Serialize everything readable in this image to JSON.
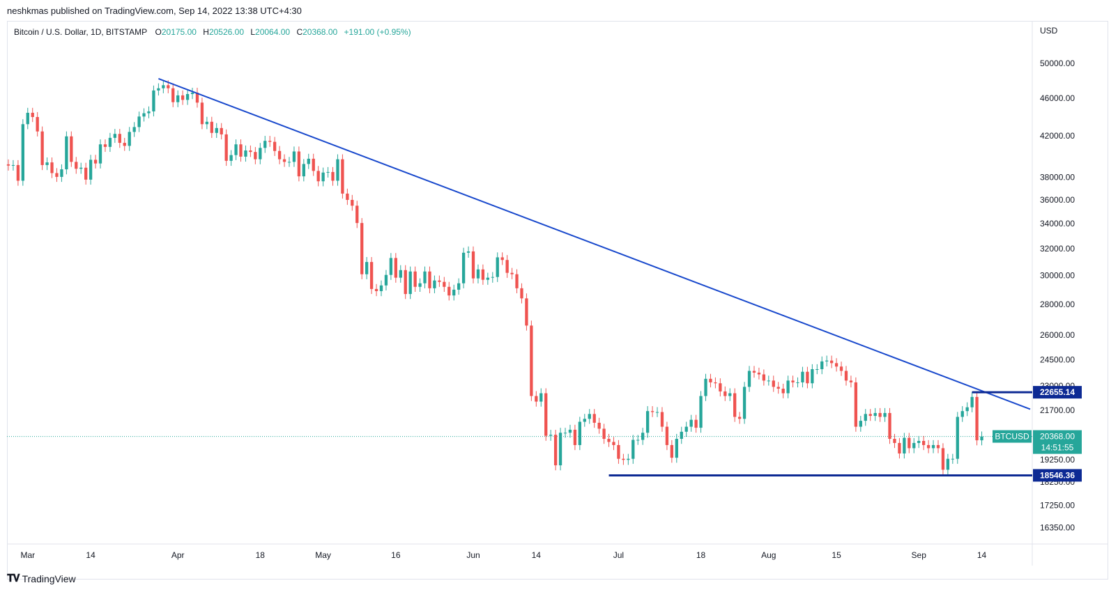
{
  "header": {
    "published": "neshkmas published on TradingView.com, Sep 14, 2022 13:38 UTC+4:30"
  },
  "legend": {
    "symbol": "Bitcoin / U.S. Dollar, 1D, BITSTAMP",
    "o_label": "O",
    "o_value": "20175.00",
    "h_label": "H",
    "h_value": "20526.00",
    "l_label": "L",
    "l_value": "20064.00",
    "c_label": "C",
    "c_value": "20368.00",
    "change": "+191.00 (+0.95%)"
  },
  "colors": {
    "up": "#26a69a",
    "down": "#ef5350",
    "trendline": "#1848cc",
    "level": "#0d2a94",
    "price_label": "#26a69a"
  },
  "brand": {
    "name": "TradingView",
    "logo_icon": "tradingview-logo-icon"
  },
  "chart_data": {
    "type": "candlestick",
    "currency_label": "USD",
    "y_scale": "log",
    "ylim": [
      15800,
      52500
    ],
    "y_ticks": [
      "50000.00",
      "46000.00",
      "42000.00",
      "38000.00",
      "36000.00",
      "34000.00",
      "32000.00",
      "30000.00",
      "28000.00",
      "26000.00",
      "24500.00",
      "23000.00",
      "21700.00",
      "19250.00",
      "18250.00",
      "17250.00",
      "16350.00"
    ],
    "x_ticks": [
      {
        "label": "Mar",
        "date": "2022-03-01"
      },
      {
        "label": "14",
        "date": "2022-03-14"
      },
      {
        "label": "Apr",
        "date": "2022-04-01"
      },
      {
        "label": "18",
        "date": "2022-04-18"
      },
      {
        "label": "May",
        "date": "2022-05-01"
      },
      {
        "label": "16",
        "date": "2022-05-16"
      },
      {
        "label": "Jun",
        "date": "2022-06-01"
      },
      {
        "label": "14",
        "date": "2022-06-14"
      },
      {
        "label": "Jul",
        "date": "2022-07-01"
      },
      {
        "label": "18",
        "date": "2022-07-18"
      },
      {
        "label": "Aug",
        "date": "2022-08-01"
      },
      {
        "label": "15",
        "date": "2022-08-15"
      },
      {
        "label": "Sep",
        "date": "2022-09-01"
      },
      {
        "label": "14",
        "date": "2022-09-14"
      }
    ],
    "x_range": [
      "2022-02-25",
      "2022-09-24"
    ],
    "closes": [
      [
        "2022-02-25",
        39100
      ],
      [
        "2022-02-26",
        39150
      ],
      [
        "2022-02-27",
        37700
      ],
      [
        "2022-02-28",
        43200
      ],
      [
        "2022-03-01",
        44400
      ],
      [
        "2022-03-02",
        43950
      ],
      [
        "2022-03-03",
        42450
      ],
      [
        "2022-03-04",
        39150
      ],
      [
        "2022-03-05",
        39400
      ],
      [
        "2022-03-06",
        38400
      ],
      [
        "2022-03-07",
        38050
      ],
      [
        "2022-03-08",
        38750
      ],
      [
        "2022-03-09",
        41950
      ],
      [
        "2022-03-10",
        39450
      ],
      [
        "2022-03-11",
        38800
      ],
      [
        "2022-03-12",
        38900
      ],
      [
        "2022-03-13",
        37800
      ],
      [
        "2022-03-14",
        39650
      ],
      [
        "2022-03-15",
        39300
      ],
      [
        "2022-03-16",
        41150
      ],
      [
        "2022-03-17",
        40900
      ],
      [
        "2022-03-18",
        41800
      ],
      [
        "2022-03-19",
        42200
      ],
      [
        "2022-03-20",
        41300
      ],
      [
        "2022-03-21",
        41000
      ],
      [
        "2022-03-22",
        42400
      ],
      [
        "2022-03-23",
        42900
      ],
      [
        "2022-03-24",
        44000
      ],
      [
        "2022-03-25",
        44350
      ],
      [
        "2022-03-26",
        44550
      ],
      [
        "2022-03-27",
        46850
      ],
      [
        "2022-03-28",
        47100
      ],
      [
        "2022-03-29",
        47450
      ],
      [
        "2022-03-30",
        47100
      ],
      [
        "2022-03-31",
        45550
      ],
      [
        "2022-04-01",
        46300
      ],
      [
        "2022-04-02",
        45800
      ],
      [
        "2022-04-03",
        46450
      ],
      [
        "2022-04-04",
        46600
      ],
      [
        "2022-04-05",
        45500
      ],
      [
        "2022-04-06",
        43200
      ],
      [
        "2022-04-07",
        43450
      ],
      [
        "2022-04-08",
        42300
      ],
      [
        "2022-04-09",
        42800
      ],
      [
        "2022-04-10",
        42150
      ],
      [
        "2022-04-11",
        39550
      ],
      [
        "2022-04-12",
        40100
      ],
      [
        "2022-04-13",
        41150
      ],
      [
        "2022-04-14",
        39950
      ],
      [
        "2022-04-15",
        40550
      ],
      [
        "2022-04-16",
        40400
      ],
      [
        "2022-04-17",
        39700
      ],
      [
        "2022-04-18",
        40800
      ],
      [
        "2022-04-19",
        41500
      ],
      [
        "2022-04-20",
        41400
      ],
      [
        "2022-04-21",
        40500
      ],
      [
        "2022-04-22",
        39700
      ],
      [
        "2022-04-23",
        39450
      ],
      [
        "2022-04-24",
        39450
      ],
      [
        "2022-04-25",
        40450
      ],
      [
        "2022-04-26",
        38100
      ],
      [
        "2022-04-27",
        39250
      ],
      [
        "2022-04-28",
        39750
      ],
      [
        "2022-04-29",
        38600
      ],
      [
        "2022-04-30",
        37650
      ],
      [
        "2022-05-01",
        38450
      ],
      [
        "2022-05-02",
        38500
      ],
      [
        "2022-05-03",
        37700
      ],
      [
        "2022-05-04",
        39700
      ],
      [
        "2022-05-05",
        36550
      ],
      [
        "2022-05-06",
        36000
      ],
      [
        "2022-05-07",
        35500
      ],
      [
        "2022-05-08",
        34050
      ],
      [
        "2022-05-09",
        30100
      ],
      [
        "2022-05-10",
        31000
      ],
      [
        "2022-05-11",
        29050
      ],
      [
        "2022-05-12",
        28900
      ],
      [
        "2022-05-13",
        29300
      ],
      [
        "2022-05-14",
        30050
      ],
      [
        "2022-05-15",
        31300
      ],
      [
        "2022-05-16",
        29850
      ],
      [
        "2022-05-17",
        30400
      ],
      [
        "2022-05-18",
        28700
      ],
      [
        "2022-05-19",
        30300
      ],
      [
        "2022-05-20",
        29200
      ],
      [
        "2022-05-21",
        29450
      ],
      [
        "2022-05-22",
        30300
      ],
      [
        "2022-05-23",
        29100
      ],
      [
        "2022-05-24",
        29650
      ],
      [
        "2022-05-25",
        29550
      ],
      [
        "2022-05-26",
        29200
      ],
      [
        "2022-05-27",
        28600
      ],
      [
        "2022-05-28",
        29000
      ],
      [
        "2022-05-29",
        29450
      ],
      [
        "2022-05-30",
        31700
      ],
      [
        "2022-05-31",
        31800
      ],
      [
        "2022-06-01",
        29800
      ],
      [
        "2022-06-02",
        30450
      ],
      [
        "2022-06-03",
        29700
      ],
      [
        "2022-06-04",
        29850
      ],
      [
        "2022-06-05",
        29900
      ],
      [
        "2022-06-06",
        31350
      ],
      [
        "2022-06-07",
        31150
      ],
      [
        "2022-06-08",
        30200
      ],
      [
        "2022-06-09",
        30100
      ],
      [
        "2022-06-10",
        29100
      ],
      [
        "2022-06-11",
        28400
      ],
      [
        "2022-06-12",
        26600
      ],
      [
        "2022-06-13",
        22450
      ],
      [
        "2022-06-14",
        22150
      ],
      [
        "2022-06-15",
        22600
      ],
      [
        "2022-06-16",
        20400
      ],
      [
        "2022-06-17",
        20450
      ],
      [
        "2022-06-18",
        19000
      ],
      [
        "2022-06-19",
        20550
      ],
      [
        "2022-06-20",
        20550
      ],
      [
        "2022-06-21",
        20700
      ],
      [
        "2022-06-22",
        19950
      ],
      [
        "2022-06-23",
        21100
      ],
      [
        "2022-06-24",
        21250
      ],
      [
        "2022-06-25",
        21500
      ],
      [
        "2022-06-26",
        21050
      ],
      [
        "2022-06-27",
        20750
      ],
      [
        "2022-06-28",
        20250
      ],
      [
        "2022-06-29",
        20100
      ],
      [
        "2022-06-30",
        19950
      ],
      [
        "2022-07-01",
        19300
      ],
      [
        "2022-07-02",
        19250
      ],
      [
        "2022-07-03",
        19300
      ],
      [
        "2022-07-04",
        20200
      ],
      [
        "2022-07-05",
        20200
      ],
      [
        "2022-07-06",
        20550
      ],
      [
        "2022-07-07",
        21650
      ],
      [
        "2022-07-08",
        21600
      ],
      [
        "2022-07-09",
        21600
      ],
      [
        "2022-07-10",
        20850
      ],
      [
        "2022-07-11",
        19950
      ],
      [
        "2022-07-12",
        19350
      ],
      [
        "2022-07-13",
        20250
      ],
      [
        "2022-07-14",
        20600
      ],
      [
        "2022-07-15",
        20850
      ],
      [
        "2022-07-16",
        21200
      ],
      [
        "2022-07-17",
        20800
      ],
      [
        "2022-07-18",
        22450
      ],
      [
        "2022-07-19",
        23400
      ],
      [
        "2022-07-20",
        23200
      ],
      [
        "2022-07-21",
        23150
      ],
      [
        "2022-07-22",
        22700
      ],
      [
        "2022-07-23",
        22450
      ],
      [
        "2022-07-24",
        22600
      ],
      [
        "2022-07-25",
        21350
      ],
      [
        "2022-07-26",
        21250
      ],
      [
        "2022-07-27",
        22950
      ],
      [
        "2022-07-28",
        23850
      ],
      [
        "2022-07-29",
        23750
      ],
      [
        "2022-07-30",
        23650
      ],
      [
        "2022-07-31",
        23300
      ],
      [
        "2022-08-01",
        23300
      ],
      [
        "2022-08-02",
        22950
      ],
      [
        "2022-08-03",
        22850
      ],
      [
        "2022-08-04",
        22600
      ],
      [
        "2022-08-05",
        23300
      ],
      [
        "2022-08-06",
        23200
      ],
      [
        "2022-08-07",
        23200
      ],
      [
        "2022-08-08",
        23800
      ],
      [
        "2022-08-09",
        23150
      ],
      [
        "2022-08-10",
        23950
      ],
      [
        "2022-08-11",
        23950
      ],
      [
        "2022-08-12",
        24400
      ],
      [
        "2022-08-13",
        24450
      ],
      [
        "2022-08-14",
        24300
      ],
      [
        "2022-08-15",
        24100
      ],
      [
        "2022-08-16",
        23850
      ],
      [
        "2022-08-17",
        23300
      ],
      [
        "2022-08-18",
        23200
      ],
      [
        "2022-08-19",
        20850
      ],
      [
        "2022-08-20",
        21150
      ],
      [
        "2022-08-21",
        21500
      ],
      [
        "2022-08-22",
        21400
      ],
      [
        "2022-08-23",
        21550
      ],
      [
        "2022-08-24",
        21350
      ],
      [
        "2022-08-25",
        21550
      ],
      [
        "2022-08-26",
        20250
      ],
      [
        "2022-08-27",
        20050
      ],
      [
        "2022-08-28",
        19550
      ],
      [
        "2022-08-29",
        20300
      ],
      [
        "2022-08-30",
        19800
      ],
      [
        "2022-08-31",
        20050
      ],
      [
        "2022-09-01",
        20150
      ],
      [
        "2022-09-02",
        19950
      ],
      [
        "2022-09-03",
        19800
      ],
      [
        "2022-09-04",
        19950
      ],
      [
        "2022-09-05",
        19800
      ],
      [
        "2022-09-06",
        18800
      ],
      [
        "2022-09-07",
        19300
      ],
      [
        "2022-09-08",
        19300
      ],
      [
        "2022-09-09",
        21350
      ],
      [
        "2022-09-10",
        21650
      ],
      [
        "2022-09-11",
        21850
      ],
      [
        "2022-09-12",
        22400
      ],
      [
        "2022-09-13",
        20180
      ],
      [
        "2022-09-14",
        20368
      ]
    ],
    "trendline": {
      "from": [
        "2022-03-28",
        48200
      ],
      "to": [
        "2022-09-24",
        21750
      ]
    },
    "levels": [
      {
        "value": 22655.14,
        "label": "22655.14",
        "from": "2022-09-12",
        "to": "2022-09-24"
      },
      {
        "value": 18546.36,
        "label": "18546.36",
        "from": "2022-06-29",
        "to": "2022-09-24"
      }
    ],
    "last_price": {
      "symbol": "BTCUSD",
      "value": "20368.00",
      "countdown": "14:51:55",
      "y": 20368
    }
  }
}
